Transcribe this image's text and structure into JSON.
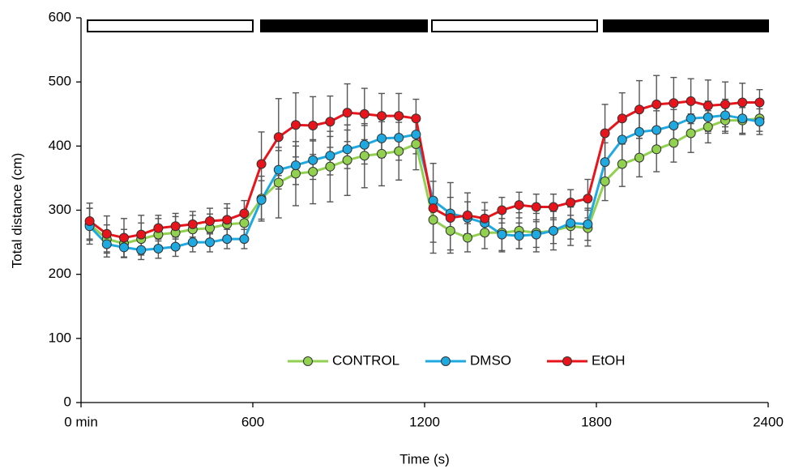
{
  "chart_data": {
    "type": "line",
    "x_label": "Time (s)",
    "y_label": "Total distance (cm)",
    "x": [
      30,
      90,
      150,
      210,
      270,
      330,
      390,
      450,
      510,
      570,
      630,
      690,
      750,
      810,
      870,
      930,
      990,
      1050,
      1110,
      1170,
      1230,
      1290,
      1350,
      1410,
      1470,
      1530,
      1590,
      1650,
      1710,
      1770,
      1830,
      1890,
      1950,
      2010,
      2070,
      2130,
      2190,
      2250,
      2310,
      2370
    ],
    "xlim": [
      0,
      2400
    ],
    "xticks": [
      {
        "value": 0,
        "label": "0 min"
      },
      600,
      1200,
      1800,
      2400
    ],
    "ylim": [
      0,
      600
    ],
    "yticks": [
      0,
      100,
      200,
      300,
      400,
      500,
      600
    ],
    "legend": "bottom",
    "series": [
      {
        "name": "CONTROL",
        "color": "#92d050",
        "values": [
          278,
          255,
          248,
          255,
          262,
          265,
          270,
          272,
          278,
          280,
          318,
          343,
          357,
          360,
          368,
          378,
          385,
          388,
          392,
          403,
          285,
          268,
          257,
          265,
          265,
          268,
          265,
          268,
          275,
          272,
          345,
          372,
          382,
          395,
          405,
          420,
          430,
          440,
          440,
          443
        ],
        "errors": [
          25,
          22,
          22,
          25,
          25,
          25,
          22,
          22,
          25,
          20,
          35,
          55,
          50,
          50,
          55,
          55,
          50,
          50,
          45,
          40,
          35,
          30,
          22,
          25,
          30,
          28,
          30,
          30,
          30,
          28,
          30,
          35,
          30,
          35,
          30,
          30,
          25,
          20,
          20,
          20
        ]
      },
      {
        "name": "DMSO",
        "color": "#1fa9e1",
        "values": [
          275,
          247,
          242,
          238,
          240,
          243,
          250,
          250,
          255,
          255,
          316,
          363,
          370,
          378,
          385,
          395,
          402,
          412,
          413,
          418,
          315,
          295,
          288,
          280,
          262,
          260,
          262,
          268,
          280,
          278,
          375,
          410,
          422,
          425,
          432,
          443,
          445,
          448,
          443,
          438
        ],
        "errors": [
          28,
          20,
          15,
          15,
          15,
          15,
          15,
          15,
          15,
          15,
          30,
          30,
          30,
          30,
          30,
          30,
          30,
          30,
          35,
          30,
          30,
          25,
          25,
          20,
          25,
          20,
          20,
          20,
          25,
          25,
          30,
          35,
          35,
          30,
          25,
          25,
          25,
          25,
          25,
          20
        ]
      },
      {
        "name": "EtOH",
        "color": "#e8141c",
        "values": [
          283,
          263,
          257,
          262,
          272,
          275,
          278,
          283,
          285,
          295,
          372,
          414,
          433,
          432,
          438,
          452,
          450,
          447,
          447,
          443,
          303,
          288,
          292,
          287,
          300,
          308,
          305,
          305,
          312,
          318,
          420,
          443,
          457,
          465,
          467,
          470,
          463,
          465,
          468,
          468
        ],
        "errors": [
          28,
          28,
          30,
          30,
          20,
          20,
          20,
          20,
          25,
          20,
          50,
          60,
          50,
          45,
          40,
          45,
          40,
          35,
          35,
          30,
          70,
          55,
          35,
          25,
          20,
          20,
          20,
          20,
          20,
          30,
          45,
          40,
          45,
          45,
          40,
          35,
          40,
          35,
          30,
          20
        ]
      }
    ]
  }
}
